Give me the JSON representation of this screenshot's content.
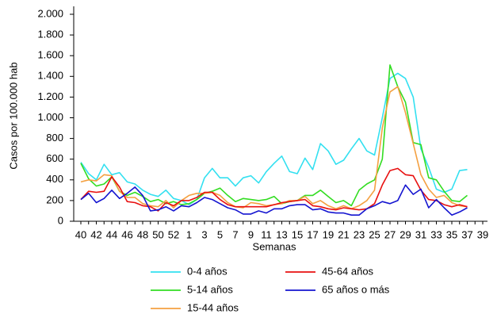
{
  "chart_data": {
    "type": "line",
    "ylabel": "Casos por 100.000 hab",
    "xlabel": "Semanas",
    "categories": [
      40,
      null,
      42,
      null,
      44,
      null,
      46,
      null,
      48,
      null,
      50,
      null,
      52,
      null,
      1,
      null,
      3,
      null,
      5,
      null,
      7,
      null,
      9,
      null,
      11,
      null,
      13,
      null,
      15,
      null,
      17,
      null,
      19,
      null,
      21,
      null,
      23,
      null,
      25,
      null,
      27,
      null,
      29,
      null,
      31,
      null,
      33,
      null,
      35,
      null,
      37,
      null,
      39
    ],
    "ylim": [
      0,
      2000
    ],
    "yticks": [
      0,
      200,
      400,
      600,
      800,
      {
        "value": 1000,
        "label": "1.000"
      },
      {
        "value": 1200,
        "label": "1.200"
      },
      {
        "value": 1400,
        "label": "1.400"
      },
      {
        "value": 1600,
        "label": "1.600"
      },
      {
        "value": 1800,
        "label": "1.800"
      },
      {
        "value": 2000,
        "label": "2.000"
      }
    ],
    "series": [
      {
        "name": "0-4 años",
        "color": "#33e0f0",
        "values": [
          570,
          460,
          400,
          550,
          450,
          470,
          380,
          360,
          300,
          260,
          240,
          300,
          220,
          200,
          160,
          210,
          420,
          510,
          420,
          420,
          340,
          420,
          440,
          370,
          480,
          560,
          630,
          480,
          460,
          610,
          500,
          750,
          680,
          550,
          590,
          700,
          800,
          680,
          640,
          1000,
          1380,
          1430,
          1380,
          1200,
          700,
          520,
          310,
          280,
          310,
          490,
          500,
          null,
          null
        ]
      },
      {
        "name": "5-14 años",
        "color": "#33dd22",
        "values": [
          560,
          410,
          340,
          360,
          430,
          290,
          250,
          280,
          240,
          190,
          210,
          170,
          190,
          160,
          170,
          210,
          270,
          290,
          320,
          250,
          190,
          220,
          210,
          200,
          210,
          240,
          170,
          190,
          200,
          250,
          250,
          300,
          240,
          180,
          200,
          150,
          300,
          360,
          400,
          600,
          1510,
          1300,
          1150,
          760,
          740,
          420,
          400,
          290,
          200,
          190,
          250,
          null,
          null
        ]
      },
      {
        "name": "15-44 años",
        "color": "#f4a040",
        "values": [
          380,
          400,
          390,
          450,
          440,
          290,
          230,
          230,
          170,
          150,
          140,
          200,
          130,
          200,
          250,
          270,
          270,
          280,
          250,
          180,
          140,
          130,
          180,
          170,
          150,
          160,
          170,
          200,
          200,
          240,
          170,
          200,
          150,
          120,
          150,
          120,
          150,
          200,
          300,
          900,
          1250,
          1300,
          1050,
          750,
          450,
          310,
          230,
          250,
          180,
          150,
          140,
          null,
          null
        ]
      },
      {
        "name": "45-64 años",
        "color": "#e81010",
        "values": [
          210,
          290,
          280,
          290,
          430,
          330,
          190,
          180,
          150,
          140,
          100,
          180,
          150,
          200,
          200,
          230,
          280,
          280,
          210,
          160,
          140,
          140,
          140,
          140,
          140,
          160,
          180,
          190,
          200,
          210,
          150,
          140,
          120,
          110,
          130,
          120,
          110,
          120,
          170,
          350,
          490,
          510,
          450,
          440,
          300,
          210,
          200,
          160,
          140,
          160,
          140,
          null,
          null
        ]
      },
      {
        "name": "65 años o más",
        "color": "#1515d0",
        "values": [
          210,
          270,
          180,
          220,
          300,
          220,
          270,
          330,
          250,
          100,
          110,
          140,
          100,
          150,
          140,
          180,
          230,
          210,
          170,
          130,
          110,
          70,
          70,
          100,
          80,
          120,
          120,
          150,
          160,
          160,
          110,
          120,
          90,
          80,
          80,
          60,
          60,
          120,
          150,
          190,
          170,
          200,
          350,
          260,
          310,
          130,
          210,
          130,
          60,
          90,
          130,
          null,
          null
        ]
      }
    ]
  }
}
